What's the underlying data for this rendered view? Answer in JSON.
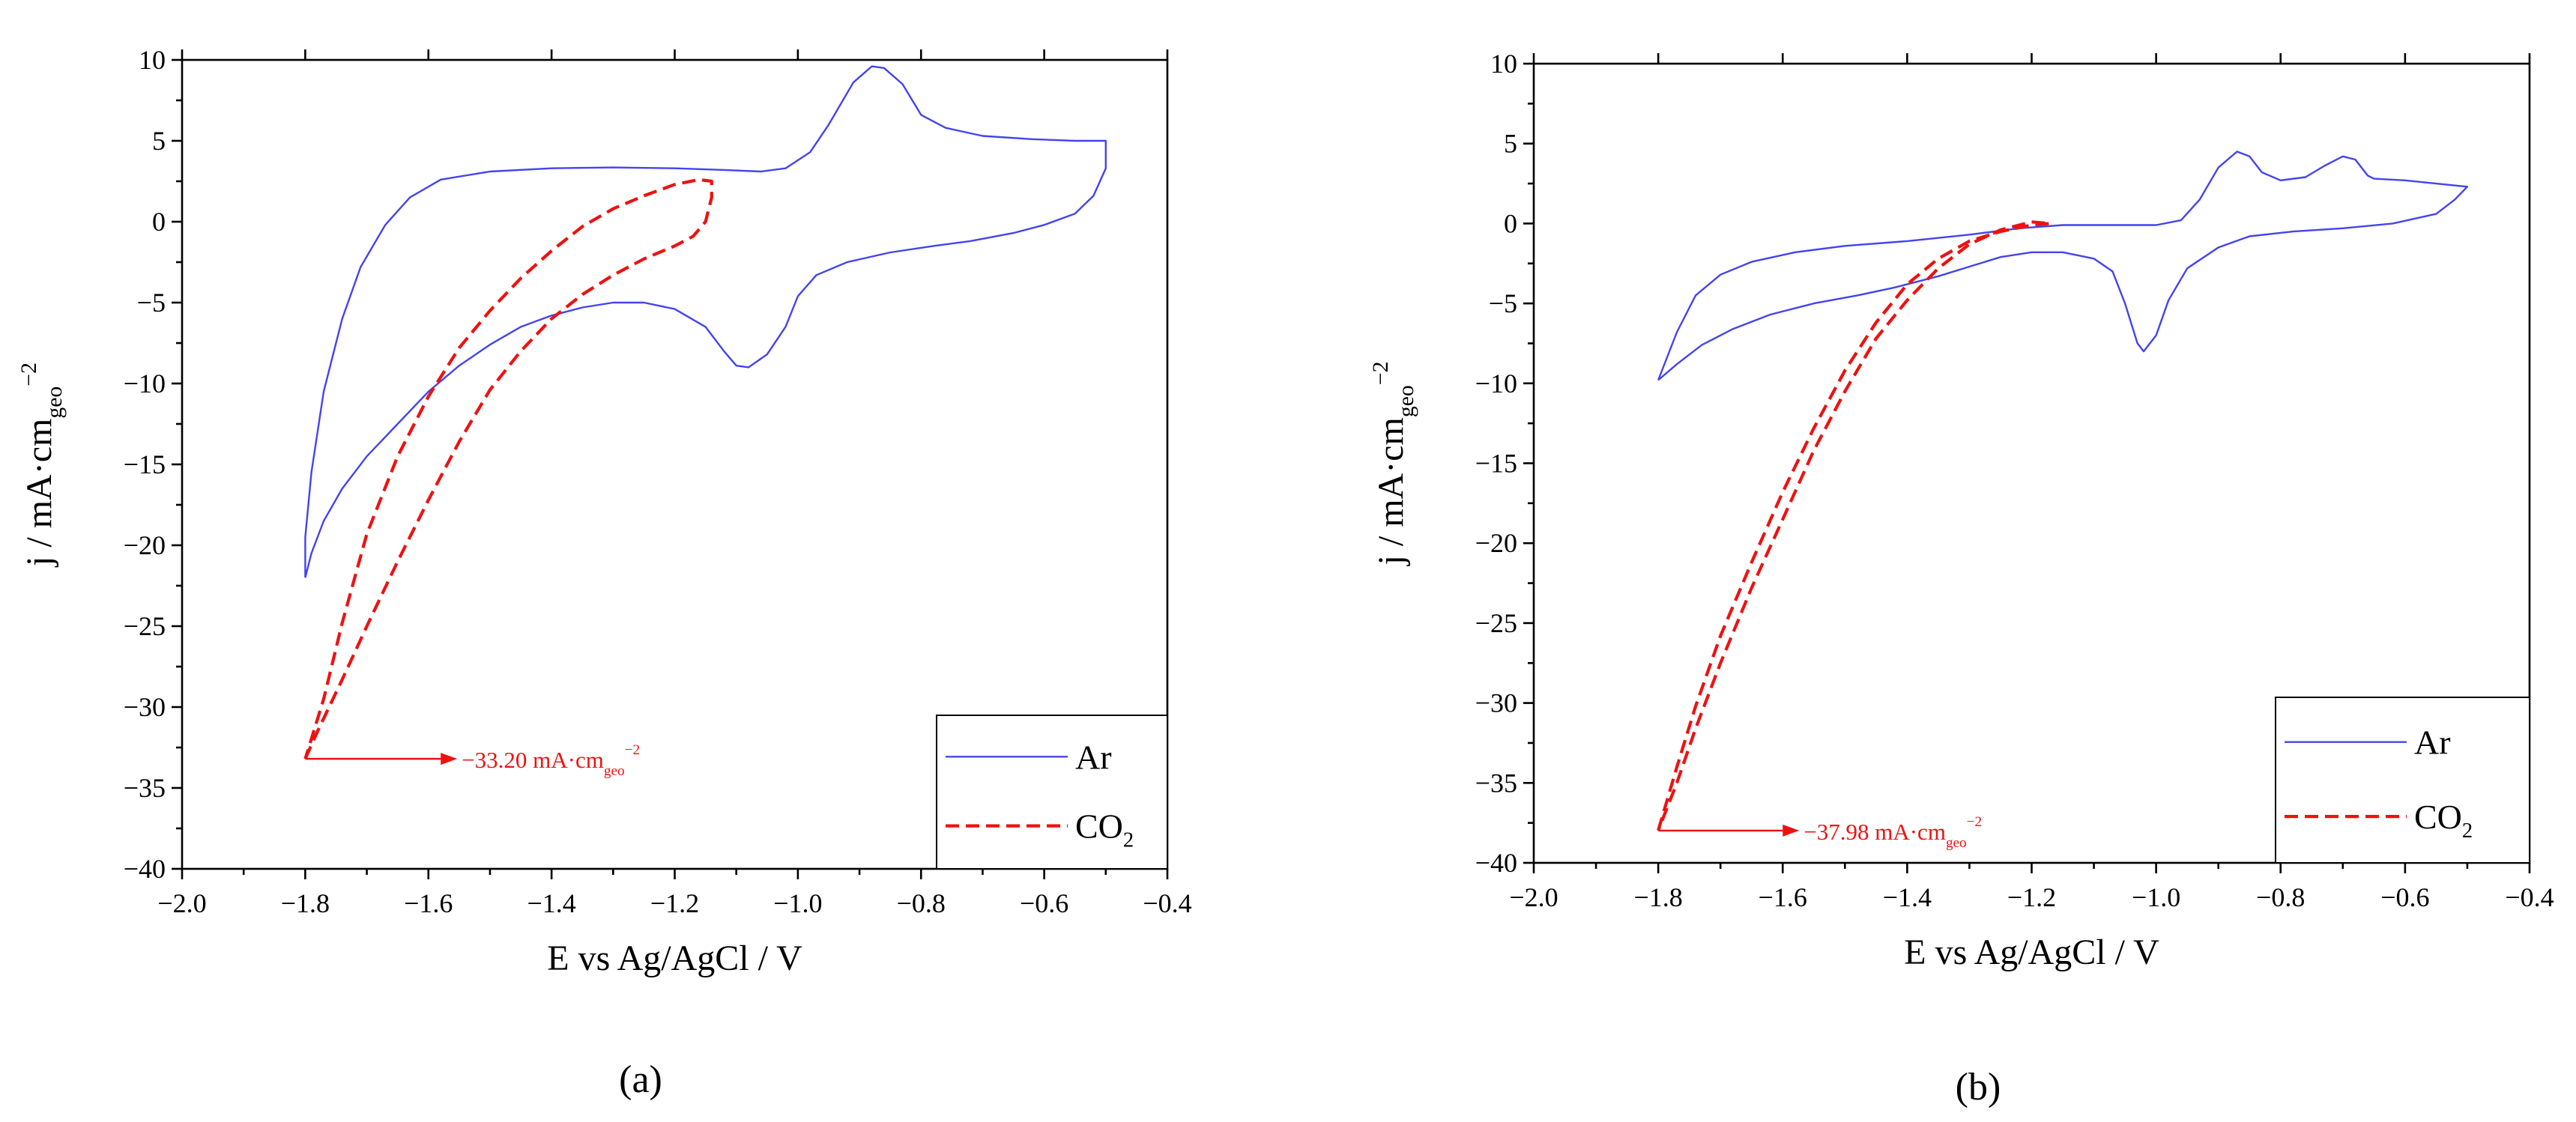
{
  "chart_data": [
    {
      "type": "line",
      "panel_label": "(a)",
      "xlabel": "E vs Ag/AgCl / V",
      "ylabel": {
        "main": "j / mA·cm",
        "sub": "geo",
        "sup": "−2"
      },
      "xlim": [
        -2.0,
        -0.4
      ],
      "ylim": [
        -40,
        10
      ],
      "xticks": [
        -2.0,
        -1.8,
        -1.6,
        -1.4,
        -1.2,
        -1.0,
        -0.8,
        -0.6,
        -0.4
      ],
      "xtick_labels": [
        "−2.0",
        "−1.8",
        "−1.6",
        "−1.4",
        "−1.2",
        "−1.0",
        "−0.8",
        "−0.6",
        "−0.4"
      ],
      "yticks": [
        10,
        5,
        0,
        -5,
        -10,
        -15,
        -20,
        -25,
        -30,
        -35,
        -40
      ],
      "ytick_labels": [
        "10",
        "5",
        "0",
        "−5",
        "−10",
        "−15",
        "−20",
        "−25",
        "−30",
        "−35",
        "−40"
      ],
      "legend": {
        "position": "bottom-right",
        "entries": [
          {
            "name": "Ar",
            "style": "solid",
            "color": "#4444ee"
          },
          {
            "name": "CO",
            "sub": "2",
            "style": "dashed",
            "color": "#ee1111"
          }
        ]
      },
      "annotation": {
        "text": "−33.20 mA·cm",
        "sub": "geo",
        "sup": "−2",
        "arrow_from": [
          -1.8,
          -33.2
        ],
        "arrow_to": [
          -1.58,
          -33.2
        ]
      },
      "series": [
        {
          "name": "Ar",
          "color": "#4444ee",
          "style": "solid",
          "points": [
            [
              -1.8,
              -22
            ],
            [
              -1.79,
              -20.5
            ],
            [
              -1.77,
              -18.5
            ],
            [
              -1.74,
              -16.5
            ],
            [
              -1.7,
              -14.5
            ],
            [
              -1.65,
              -12.5
            ],
            [
              -1.6,
              -10.5
            ],
            [
              -1.55,
              -8.9
            ],
            [
              -1.5,
              -7.6
            ],
            [
              -1.45,
              -6.5
            ],
            [
              -1.4,
              -5.8
            ],
            [
              -1.35,
              -5.3
            ],
            [
              -1.3,
              -5.0
            ],
            [
              -1.25,
              -5.0
            ],
            [
              -1.2,
              -5.4
            ],
            [
              -1.15,
              -6.5
            ],
            [
              -1.12,
              -8.0
            ],
            [
              -1.1,
              -8.9
            ],
            [
              -1.08,
              -9.0
            ],
            [
              -1.05,
              -8.2
            ],
            [
              -1.02,
              -6.5
            ],
            [
              -1.0,
              -4.6
            ],
            [
              -0.97,
              -3.3
            ],
            [
              -0.92,
              -2.5
            ],
            [
              -0.85,
              -1.9
            ],
            [
              -0.78,
              -1.5
            ],
            [
              -0.72,
              -1.2
            ],
            [
              -0.65,
              -0.7
            ],
            [
              -0.6,
              -0.2
            ],
            [
              -0.55,
              0.5
            ],
            [
              -0.52,
              1.6
            ],
            [
              -0.5,
              3.3
            ],
            [
              -0.5,
              5.0
            ],
            [
              -0.55,
              5.0
            ],
            [
              -0.62,
              5.1
            ],
            [
              -0.7,
              5.3
            ],
            [
              -0.76,
              5.8
            ],
            [
              -0.8,
              6.6
            ],
            [
              -0.83,
              8.5
            ],
            [
              -0.86,
              9.5
            ],
            [
              -0.88,
              9.6
            ],
            [
              -0.91,
              8.6
            ],
            [
              -0.95,
              6.0
            ],
            [
              -0.98,
              4.3
            ],
            [
              -1.02,
              3.3
            ],
            [
              -1.06,
              3.1
            ],
            [
              -1.12,
              3.2
            ],
            [
              -1.2,
              3.3
            ],
            [
              -1.3,
              3.35
            ],
            [
              -1.4,
              3.3
            ],
            [
              -1.5,
              3.1
            ],
            [
              -1.58,
              2.6
            ],
            [
              -1.63,
              1.5
            ],
            [
              -1.67,
              -0.2
            ],
            [
              -1.71,
              -2.8
            ],
            [
              -1.74,
              -6.0
            ],
            [
              -1.77,
              -10.5
            ],
            [
              -1.79,
              -15.5
            ],
            [
              -1.8,
              -19.5
            ],
            [
              -1.8,
              -22
            ]
          ]
        },
        {
          "name": "CO2",
          "color": "#ee1111",
          "style": "dashed",
          "points": [
            [
              -1.8,
              -33.2
            ],
            [
              -1.78,
              -31.5
            ],
            [
              -1.74,
              -28.3
            ],
            [
              -1.7,
              -25.0
            ],
            [
              -1.65,
              -21.0
            ],
            [
              -1.6,
              -17.2
            ],
            [
              -1.55,
              -13.6
            ],
            [
              -1.5,
              -10.4
            ],
            [
              -1.45,
              -8.0
            ],
            [
              -1.4,
              -6.0
            ],
            [
              -1.35,
              -4.5
            ],
            [
              -1.3,
              -3.3
            ],
            [
              -1.25,
              -2.3
            ],
            [
              -1.2,
              -1.5
            ],
            [
              -1.17,
              -0.9
            ],
            [
              -1.15,
              0.0
            ],
            [
              -1.14,
              1.5
            ],
            [
              -1.14,
              2.5
            ],
            [
              -1.16,
              2.6
            ],
            [
              -1.2,
              2.3
            ],
            [
              -1.25,
              1.6
            ],
            [
              -1.3,
              0.8
            ],
            [
              -1.35,
              -0.3
            ],
            [
              -1.4,
              -1.8
            ],
            [
              -1.45,
              -3.5
            ],
            [
              -1.5,
              -5.5
            ],
            [
              -1.55,
              -7.8
            ],
            [
              -1.6,
              -10.8
            ],
            [
              -1.65,
              -14.5
            ],
            [
              -1.7,
              -19.3
            ],
            [
              -1.74,
              -24.8
            ],
            [
              -1.77,
              -29.5
            ],
            [
              -1.8,
              -33.2
            ]
          ]
        }
      ]
    },
    {
      "type": "line",
      "panel_label": "(b)",
      "xlabel": "E vs Ag/AgCl / V",
      "ylabel": {
        "main": "j / mA·cm",
        "sub": "geo",
        "sup": "−2"
      },
      "xlim": [
        -2.0,
        -0.4
      ],
      "ylim": [
        -40,
        10
      ],
      "xticks": [
        -2.0,
        -1.8,
        -1.6,
        -1.4,
        -1.2,
        -1.0,
        -0.8,
        -0.6,
        -0.4
      ],
      "xtick_labels": [
        "−2.0",
        "−1.8",
        "−1.6",
        "−1.4",
        "−1.2",
        "−1.0",
        "−0.8",
        "−0.6",
        "−0.4"
      ],
      "yticks": [
        10,
        5,
        0,
        -5,
        -10,
        -15,
        -20,
        -25,
        -30,
        -35,
        -40
      ],
      "ytick_labels": [
        "10",
        "5",
        "0",
        "−5",
        "−10",
        "−15",
        "−20",
        "−25",
        "−30",
        "−35",
        "−40"
      ],
      "legend": {
        "position": "bottom-right",
        "entries": [
          {
            "name": "Ar",
            "style": "solid",
            "color": "#4444ee"
          },
          {
            "name": "CO",
            "sub": "2",
            "style": "dashed",
            "color": "#ee1111"
          }
        ]
      },
      "annotation": {
        "text": "−37.98 mA·cm",
        "sub": "geo",
        "sup": "−2",
        "arrow_from": [
          -1.8,
          -37.98
        ],
        "arrow_to": [
          -1.6,
          -37.98
        ]
      },
      "series": [
        {
          "name": "Ar",
          "color": "#4444ee",
          "style": "solid",
          "points": [
            [
              -1.8,
              -9.8
            ],
            [
              -1.77,
              -8.8
            ],
            [
              -1.73,
              -7.6
            ],
            [
              -1.68,
              -6.6
            ],
            [
              -1.62,
              -5.7
            ],
            [
              -1.55,
              -5.0
            ],
            [
              -1.48,
              -4.5
            ],
            [
              -1.42,
              -4.0
            ],
            [
              -1.35,
              -3.3
            ],
            [
              -1.3,
              -2.7
            ],
            [
              -1.25,
              -2.1
            ],
            [
              -1.2,
              -1.8
            ],
            [
              -1.15,
              -1.8
            ],
            [
              -1.1,
              -2.2
            ],
            [
              -1.07,
              -3.0
            ],
            [
              -1.05,
              -5.0
            ],
            [
              -1.03,
              -7.5
            ],
            [
              -1.02,
              -8.0
            ],
            [
              -1.0,
              -7.0
            ],
            [
              -0.98,
              -4.8
            ],
            [
              -0.95,
              -2.8
            ],
            [
              -0.9,
              -1.5
            ],
            [
              -0.85,
              -0.8
            ],
            [
              -0.78,
              -0.5
            ],
            [
              -0.7,
              -0.3
            ],
            [
              -0.62,
              0.0
            ],
            [
              -0.55,
              0.6
            ],
            [
              -0.52,
              1.5
            ],
            [
              -0.5,
              2.3
            ],
            [
              -0.55,
              2.5
            ],
            [
              -0.6,
              2.7
            ],
            [
              -0.65,
              2.8
            ],
            [
              -0.66,
              3.0
            ],
            [
              -0.68,
              4.0
            ],
            [
              -0.7,
              4.2
            ],
            [
              -0.73,
              3.6
            ],
            [
              -0.76,
              2.9
            ],
            [
              -0.8,
              2.7
            ],
            [
              -0.83,
              3.2
            ],
            [
              -0.85,
              4.2
            ],
            [
              -0.87,
              4.5
            ],
            [
              -0.9,
              3.5
            ],
            [
              -0.93,
              1.5
            ],
            [
              -0.96,
              0.2
            ],
            [
              -1.0,
              -0.1
            ],
            [
              -1.08,
              -0.1
            ],
            [
              -1.15,
              -0.1
            ],
            [
              -1.22,
              -0.3
            ],
            [
              -1.3,
              -0.7
            ],
            [
              -1.4,
              -1.1
            ],
            [
              -1.5,
              -1.4
            ],
            [
              -1.58,
              -1.8
            ],
            [
              -1.65,
              -2.4
            ],
            [
              -1.7,
              -3.2
            ],
            [
              -1.74,
              -4.5
            ],
            [
              -1.77,
              -6.8
            ],
            [
              -1.8,
              -9.8
            ]
          ]
        },
        {
          "name": "CO2",
          "color": "#ee1111",
          "style": "dashed",
          "points": [
            [
              -1.8,
              -37.98
            ],
            [
              -1.77,
              -34.0
            ],
            [
              -1.74,
              -30.2
            ],
            [
              -1.7,
              -25.8
            ],
            [
              -1.65,
              -21.2
            ],
            [
              -1.6,
              -16.8
            ],
            [
              -1.55,
              -12.8
            ],
            [
              -1.5,
              -9.2
            ],
            [
              -1.45,
              -6.2
            ],
            [
              -1.4,
              -3.8
            ],
            [
              -1.35,
              -2.2
            ],
            [
              -1.3,
              -1.1
            ],
            [
              -1.25,
              -0.5
            ],
            [
              -1.2,
              -0.1
            ],
            [
              -1.17,
              0.0
            ],
            [
              -1.2,
              0.1
            ],
            [
              -1.25,
              -0.4
            ],
            [
              -1.3,
              -1.3
            ],
            [
              -1.35,
              -2.8
            ],
            [
              -1.4,
              -4.8
            ],
            [
              -1.45,
              -7.2
            ],
            [
              -1.5,
              -10.5
            ],
            [
              -1.55,
              -14.2
            ],
            [
              -1.6,
              -18.5
            ],
            [
              -1.65,
              -22.8
            ],
            [
              -1.7,
              -27.5
            ],
            [
              -1.74,
              -31.6
            ],
            [
              -1.77,
              -35.0
            ],
            [
              -1.8,
              -37.98
            ]
          ]
        }
      ]
    }
  ]
}
